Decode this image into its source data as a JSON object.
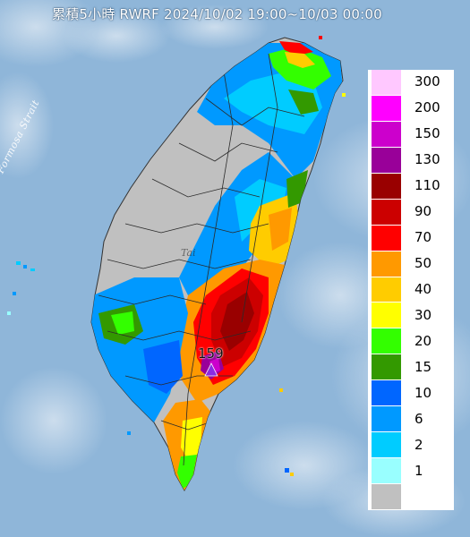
{
  "title": "累積5小時 RWRF 2024/10/02 19:00~10/03 00:00",
  "map_labels": {
    "strait": "Formosa Strait",
    "island_partial": "Tai"
  },
  "peak_marker": {
    "value": "159",
    "icon": "triangle-marker-icon",
    "color": "#8a2be2"
  },
  "legend": {
    "levels": [
      {
        "label": "300",
        "color": "#ffc8ff"
      },
      {
        "label": "200",
        "color": "#ff00ff"
      },
      {
        "label": "150",
        "color": "#cc00cc"
      },
      {
        "label": "130",
        "color": "#990099"
      },
      {
        "label": "110",
        "color": "#990000"
      },
      {
        "label": "90",
        "color": "#cc0000"
      },
      {
        "label": "70",
        "color": "#ff0000"
      },
      {
        "label": "50",
        "color": "#ff9900"
      },
      {
        "label": "40",
        "color": "#ffcc00"
      },
      {
        "label": "30",
        "color": "#ffff00"
      },
      {
        "label": "20",
        "color": "#33ff00"
      },
      {
        "label": "15",
        "color": "#339900"
      },
      {
        "label": "10",
        "color": "#0066ff"
      },
      {
        "label": "6",
        "color": "#0099ff"
      },
      {
        "label": "2",
        "color": "#00ccff"
      },
      {
        "label": "1",
        "color": "#99ffff"
      },
      {
        "label": "",
        "color": "#c0c0c0"
      }
    ]
  },
  "colors": {
    "sea": "#8fb6d9",
    "no_rain": "#c0c0c0"
  }
}
